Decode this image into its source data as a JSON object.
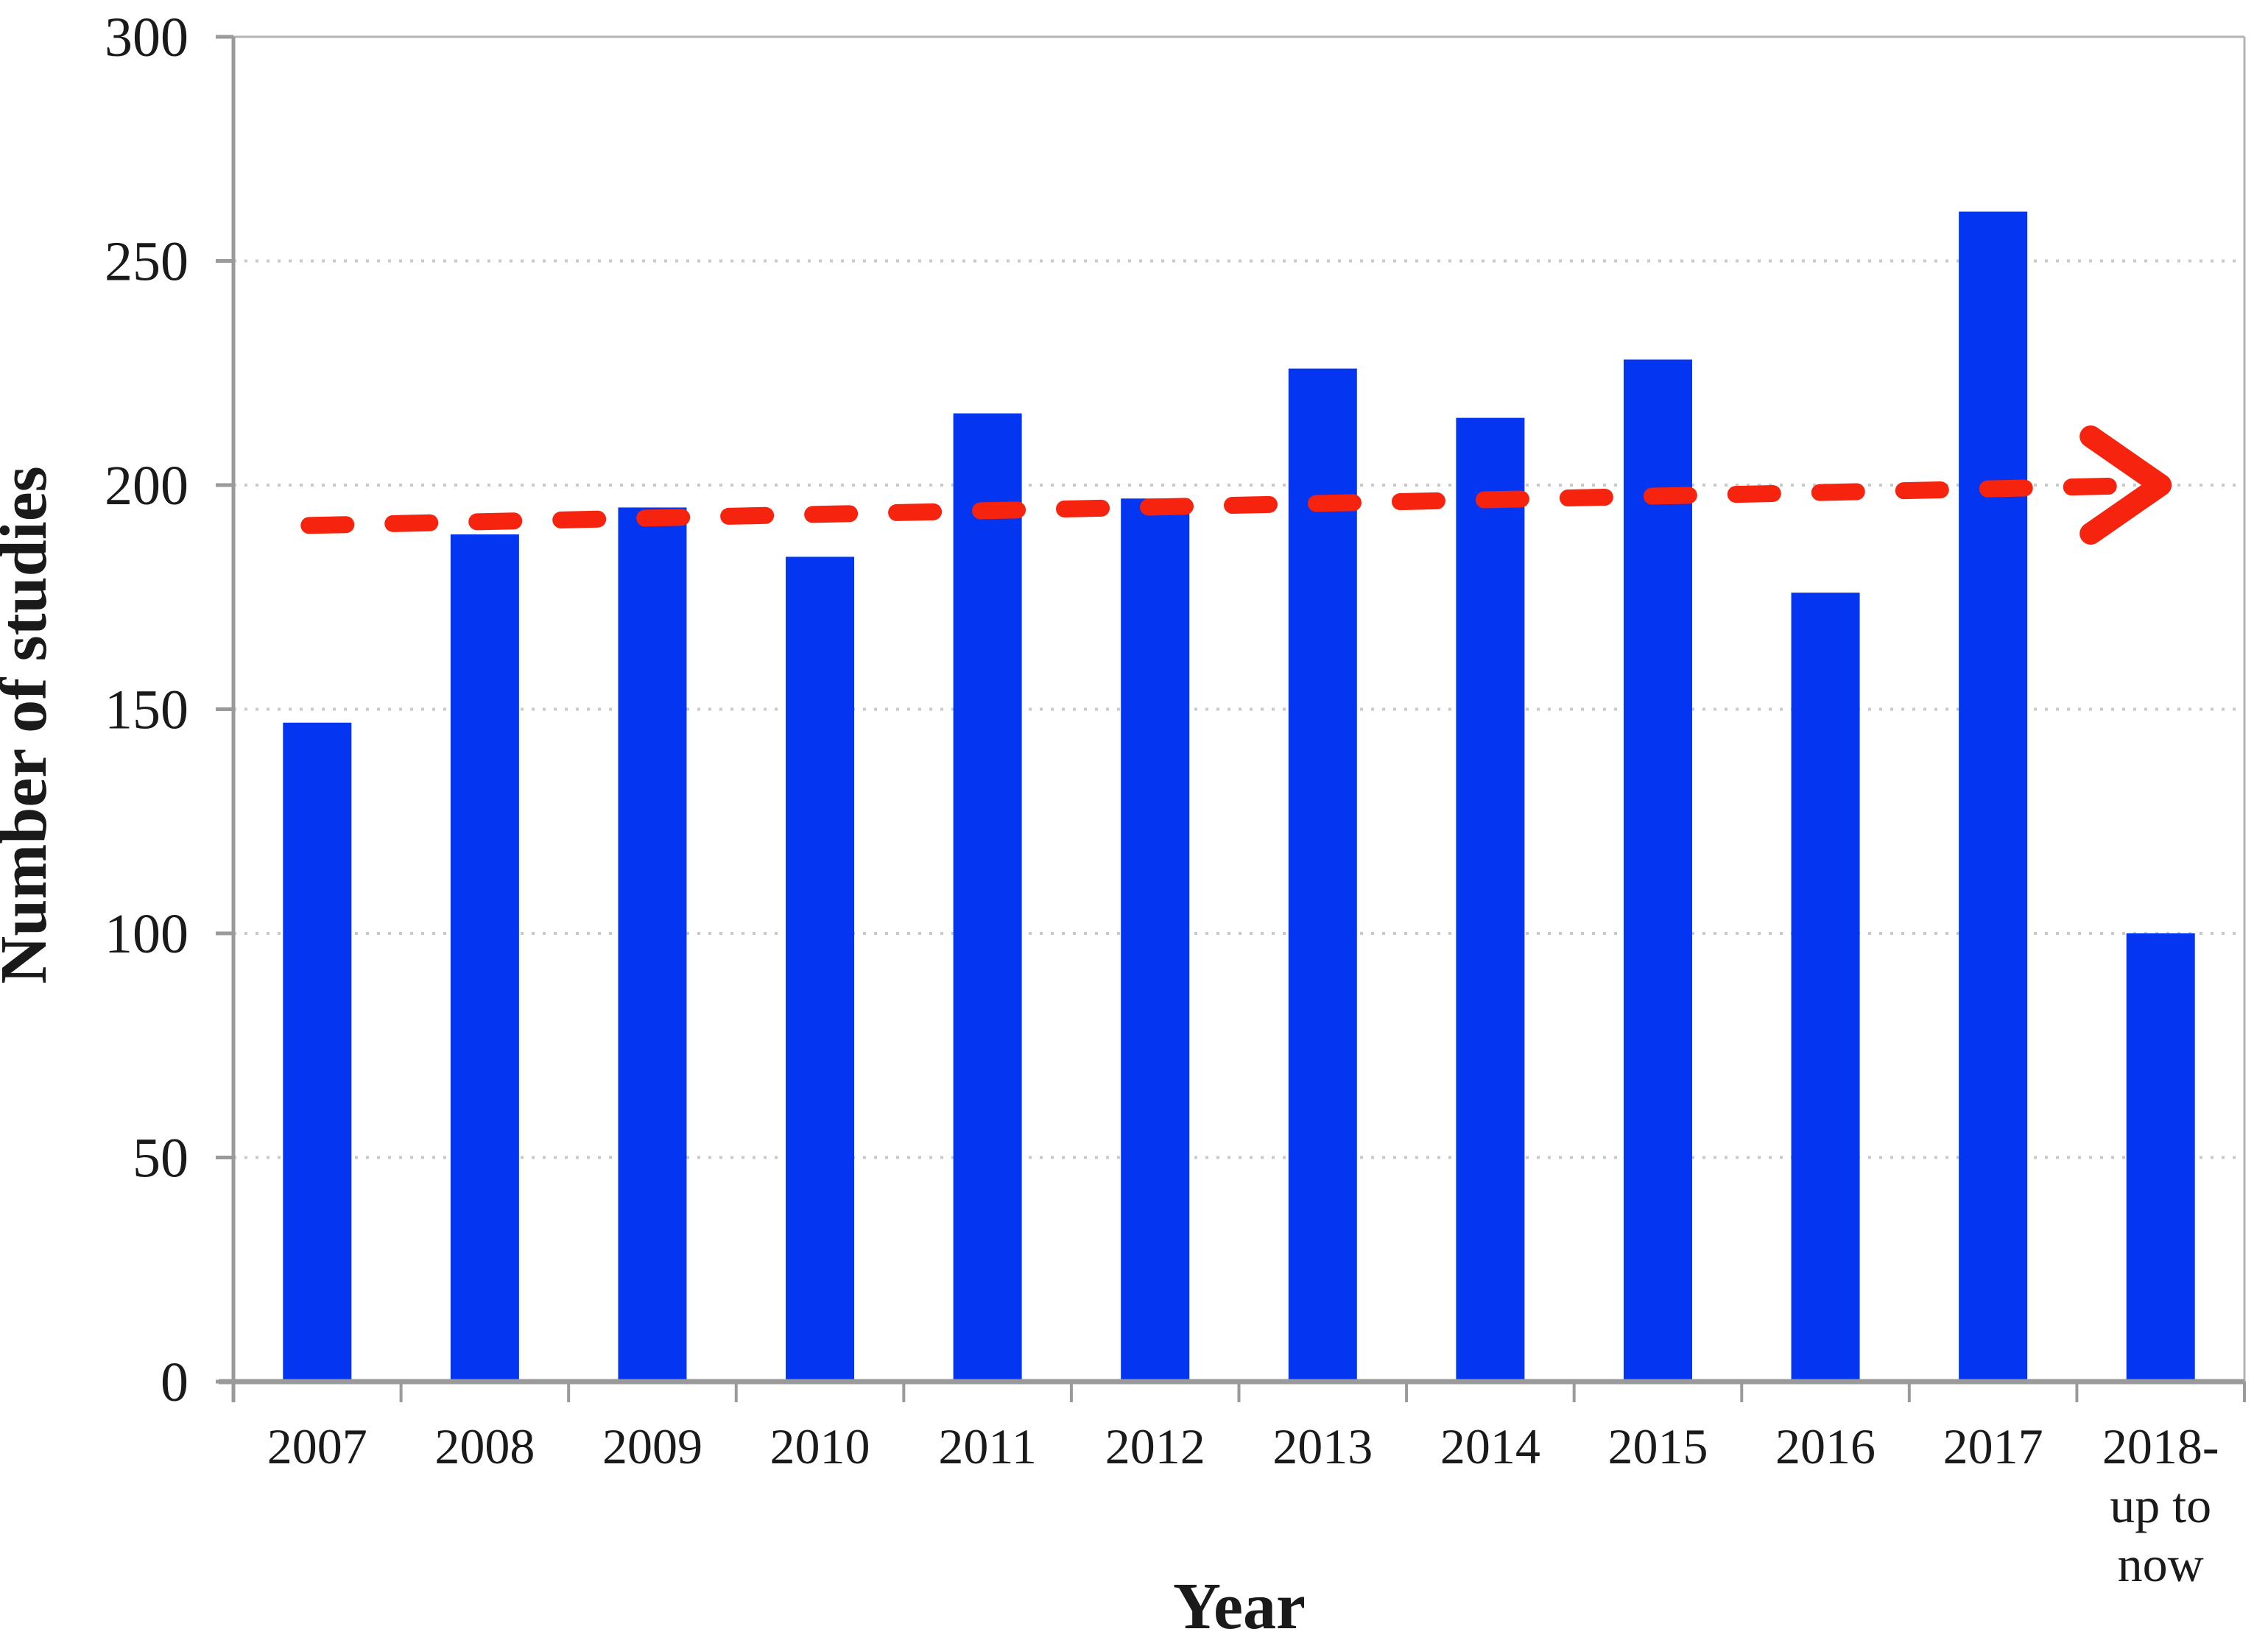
{
  "chart_data": {
    "type": "bar",
    "title": "",
    "categories": [
      "2007",
      "2008",
      "2009",
      "2010",
      "2011",
      "2012",
      "2013",
      "2014",
      "2015",
      "2016",
      "2017",
      "2018-\nup to\nnow"
    ],
    "values": [
      147,
      189,
      195,
      184,
      216,
      197,
      226,
      215,
      228,
      176,
      261,
      100
    ],
    "xlabel": "Year",
    "ylabel": "Number of studies",
    "ylim": [
      0,
      300
    ],
    "yticks": [
      0,
      50,
      100,
      150,
      200,
      250,
      300
    ],
    "grid": "horizontal dotted lines at each 50, plot framed top and right",
    "legend": "none",
    "bar_color": "#0435f0",
    "axis_color": "#9a9a9a",
    "grid_color": "#c9c9c9",
    "text_color": "#1a1a1a",
    "trendline": {
      "style": "dashed",
      "arrow": true,
      "color": "#f6230e",
      "start_value": 191,
      "end_value": 200,
      "description": "red dashed nearly-horizontal trend arrow from ~191 at 2007 to ~200 at 2018"
    }
  }
}
